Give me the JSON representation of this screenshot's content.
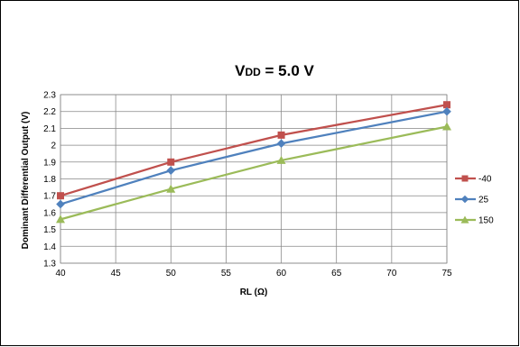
{
  "chart_data": {
    "type": "line",
    "title": "VDD = 5.0 V",
    "title_main": "V",
    "title_sub": "DD",
    "title_rest": " = 5.0 V",
    "xlabel": "RL (Ω)",
    "ylabel": "Dominant Differential Output (V)",
    "x": [
      40,
      50,
      60,
      75
    ],
    "xlim": [
      40,
      75
    ],
    "ylim": [
      1.3,
      2.3
    ],
    "xticks": [
      40,
      45,
      50,
      55,
      60,
      65,
      70,
      75
    ],
    "yticks": [
      1.3,
      1.4,
      1.5,
      1.6,
      1.7,
      1.8,
      1.9,
      2,
      2.1,
      2.2,
      2.3
    ],
    "grid": true,
    "legend_position": "right",
    "series": [
      {
        "name": "-40",
        "values": [
          1.7,
          1.9,
          2.06,
          2.24
        ],
        "color": "#C0504D",
        "marker": "square"
      },
      {
        "name": "25",
        "values": [
          1.65,
          1.85,
          2.01,
          2.2
        ],
        "color": "#4F81BD",
        "marker": "diamond"
      },
      {
        "name": "150",
        "values": [
          1.56,
          1.74,
          1.91,
          2.11
        ],
        "color": "#9BBB59",
        "marker": "triangle"
      }
    ]
  }
}
